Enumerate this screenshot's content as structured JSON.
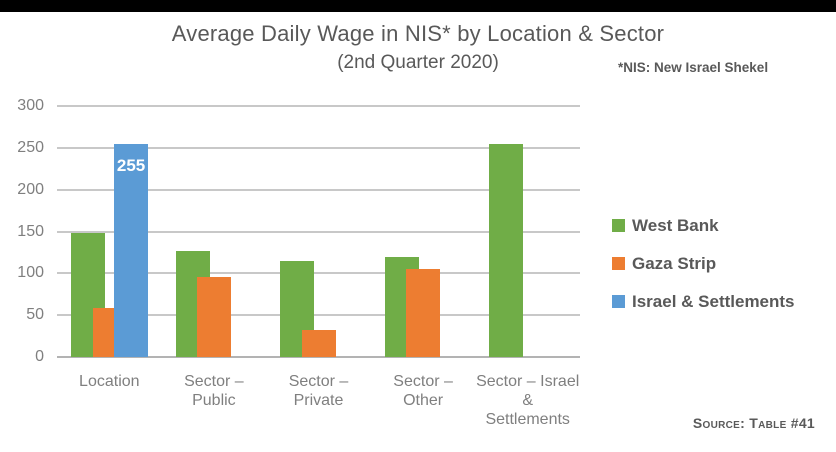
{
  "header": {
    "title": "Average Daily Wage in NIS* by Location & Sector",
    "subtitle": "(2nd Quarter 2020)",
    "note": "*NIS: New Israel Shekel"
  },
  "source": {
    "label": "Source: Table #41"
  },
  "colors": {
    "west_bank_green": "#70AD47",
    "gaza_orange": "#ED7D31",
    "israel_blue": "#5B9BD5",
    "text_gray": "#595959",
    "axis_gray": "#7F7F7F",
    "grid_gray": "#C8C8C8",
    "topbar_black": "#000000",
    "data_label_white": "#FFFFFF"
  },
  "chart_data": {
    "type": "bar",
    "title": "Average Daily Wage in NIS* by Location & Sector",
    "subtitle": "(2nd Quarter 2020)",
    "categories": [
      "Location",
      "Sector – Public",
      "Sector – Private",
      "Sector – Other",
      "Sector – Israel & Settlements"
    ],
    "category_label_lines": [
      [
        "Location"
      ],
      [
        "Sector –",
        "Public"
      ],
      [
        "Sector –",
        "Private"
      ],
      [
        "Sector –",
        "Other"
      ],
      [
        "Sector – Israel",
        "&",
        "Settlements"
      ]
    ],
    "series": [
      {
        "name": "West Bank",
        "color": "#70AD47",
        "values": [
          148,
          127,
          115,
          120,
          254
        ]
      },
      {
        "name": "Gaza Strip",
        "color": "#ED7D31",
        "values": [
          59,
          96,
          32,
          105,
          null
        ]
      },
      {
        "name": "Israel & Settlements",
        "color": "#5B9BD5",
        "values": [
          255,
          null,
          null,
          null,
          null
        ]
      }
    ],
    "data_labels": [
      {
        "series": 2,
        "category": 0,
        "text": "255"
      }
    ],
    "xlabel": "",
    "ylabel": "",
    "ylim": [
      0,
      300
    ],
    "y_ticks": [
      0,
      50,
      100,
      150,
      200,
      250,
      300
    ],
    "grid": true,
    "legend_position": "right"
  }
}
